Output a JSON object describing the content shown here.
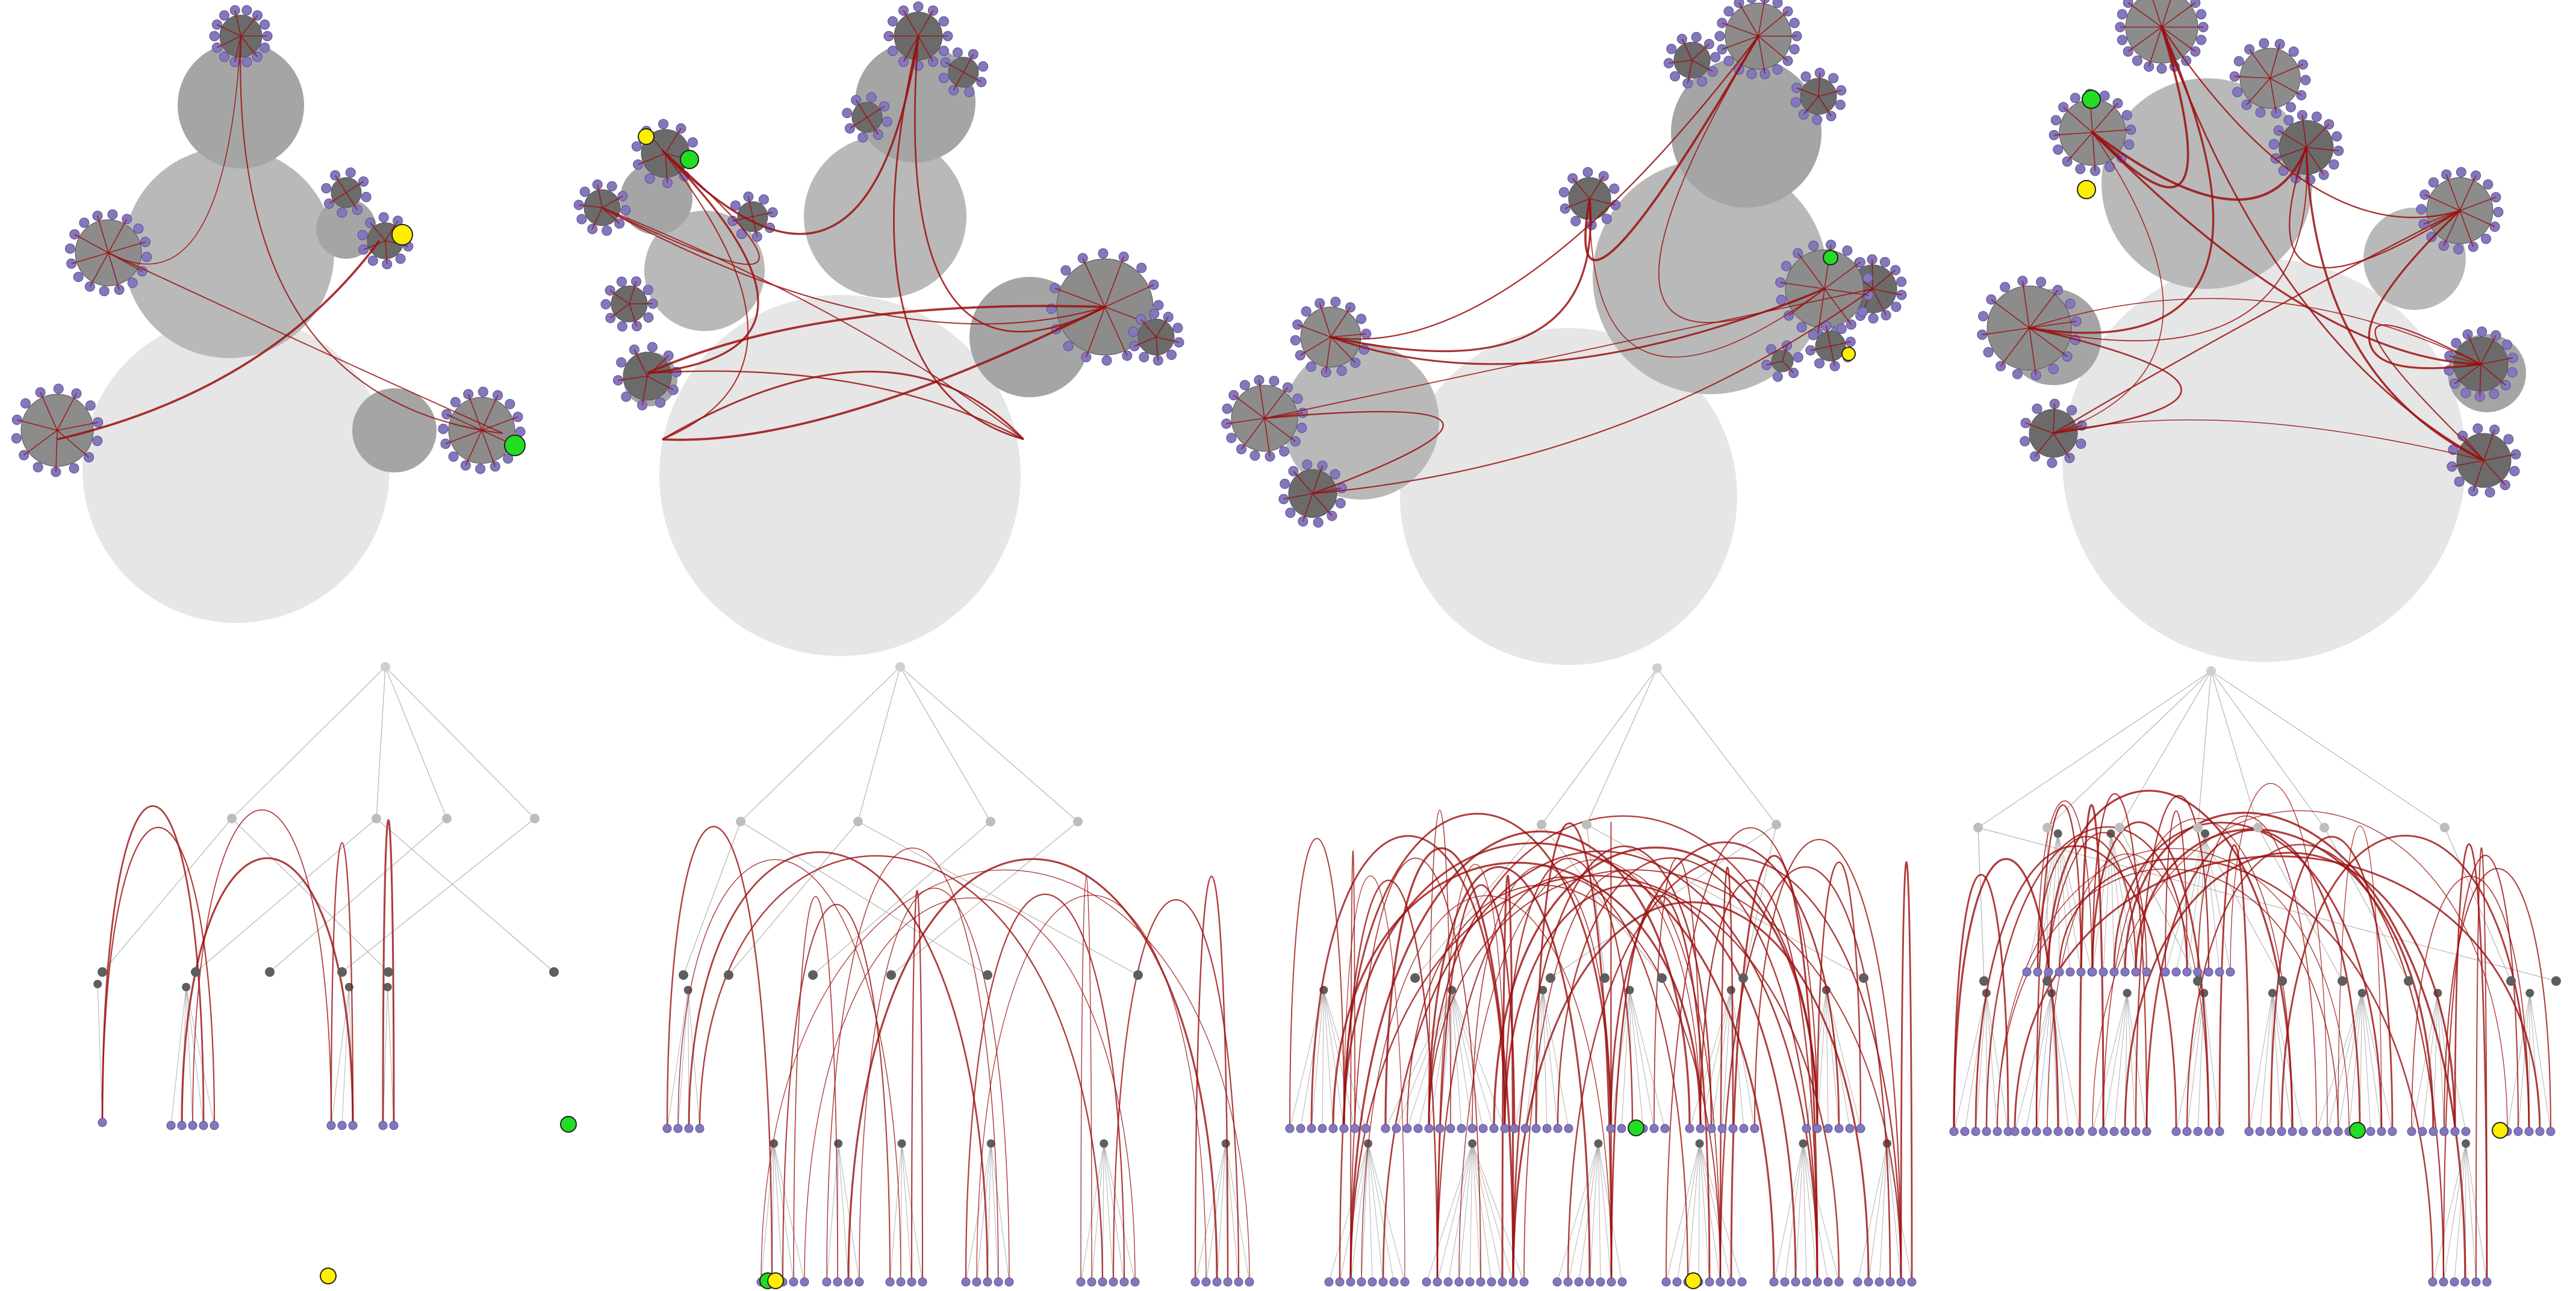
{
  "figure": {
    "layouts": [
      "balloon",
      "balloon",
      "balloon",
      "balloon",
      "hierarchical",
      "hierarchical",
      "hierarchical",
      "hierarchical"
    ],
    "colors": {
      "background": "#ffffff",
      "circle_outer": "#e6e6e6",
      "circle_level1": "#b9b9b9",
      "circle_level2": "#8c8c8c",
      "circle_level3": "#6b6b6b",
      "leaf": "#8478bc",
      "leaf_stroke": "#5a4e96",
      "edge": "#9b0e0e",
      "tree_line": "#b4b4b4",
      "inner_node": "#5e5e5e",
      "highlight_green": "#22dd22",
      "highlight_yellow": "#ffee00"
    },
    "icons": [
      "leaf-node-icon",
      "highlight-node-icon"
    ]
  }
}
